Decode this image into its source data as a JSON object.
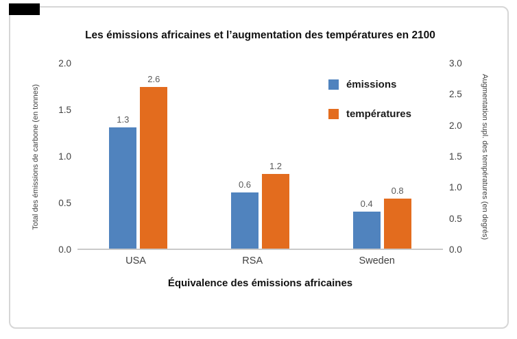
{
  "chart_data": {
    "type": "bar",
    "title": "Les émissions africaines et l’augmentation des températures en 2100",
    "categories": [
      "USA",
      "RSA",
      "Sweden"
    ],
    "series": [
      {
        "name": "émissions",
        "key": "emissions",
        "axis": "left",
        "color": "#5083BE",
        "values": [
          1.3,
          0.6,
          0.4
        ]
      },
      {
        "name": "températures",
        "key": "temperatures",
        "axis": "right",
        "color": "#E36C1E",
        "values": [
          2.6,
          1.2,
          0.8
        ]
      }
    ],
    "left_axis": {
      "label": "Total des émissions de carbone (en tonnes)",
      "min": 0.0,
      "max": 2.0,
      "ticks": [
        "2.0",
        "1.5",
        "1.0",
        "0.5",
        "0.0"
      ]
    },
    "right_axis": {
      "label": "Augmentation supl. des températures (en degrés)",
      "min": 0.0,
      "max": 3.0,
      "ticks": [
        "3.0",
        "2.5",
        "2.0",
        "1.5",
        "1.0",
        "0.5",
        "0.0"
      ]
    },
    "xlabel": "Équivalence des émissions africaines",
    "legend_position": "upper-right",
    "grid": false,
    "data_labels": true
  }
}
